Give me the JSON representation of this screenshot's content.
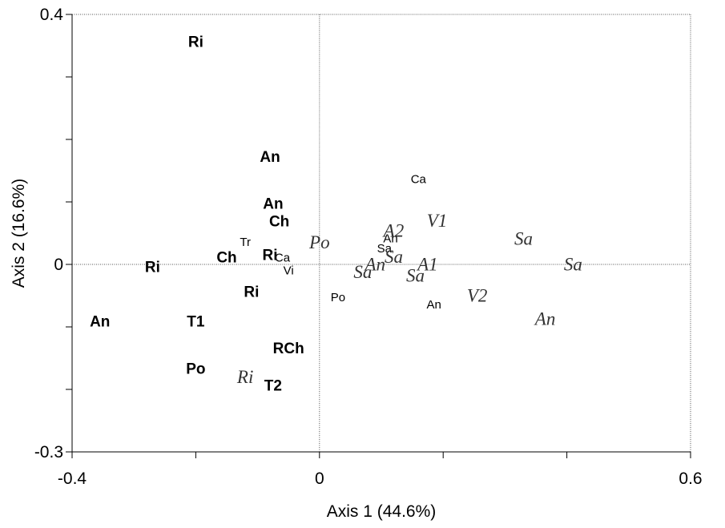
{
  "chart_data": {
    "type": "scatter",
    "title": "",
    "xlabel": "Axis 1 (44.6%)",
    "ylabel": "Axis 2 (16.6%)",
    "xlim": [
      -0.4,
      0.6
    ],
    "ylim": [
      -0.3,
      0.4
    ],
    "x_ticks": [
      -0.4,
      -0.2,
      0,
      0.2,
      0.4,
      0.6
    ],
    "x_tick_labels": [
      "-0.4",
      "",
      "0",
      "",
      "",
      "0.6"
    ],
    "y_ticks": [
      -0.3,
      -0.2,
      -0.1,
      0,
      0.1,
      0.2,
      0.3,
      0.4
    ],
    "y_tick_labels": [
      "-0.3",
      "",
      "",
      "0",
      "",
      "",
      "",
      "0.4"
    ],
    "zero_lines": true,
    "grid": false,
    "legend": "none",
    "styles": {
      "bold": {
        "color": "#000000"
      },
      "small": {
        "color": "#000000"
      },
      "italic": {
        "color": "#333333"
      }
    },
    "points": [
      {
        "label": "Ri",
        "x": -0.2,
        "y": 0.355,
        "style": "bold"
      },
      {
        "label": "An",
        "x": -0.08,
        "y": 0.171,
        "style": "bold"
      },
      {
        "label": "An",
        "x": -0.075,
        "y": 0.096,
        "style": "bold"
      },
      {
        "label": "Ch",
        "x": -0.065,
        "y": 0.068,
        "style": "bold"
      },
      {
        "label": "Ch",
        "x": -0.15,
        "y": 0.01,
        "style": "bold"
      },
      {
        "label": "Ri",
        "x": -0.08,
        "y": 0.014,
        "style": "bold"
      },
      {
        "label": "Ri",
        "x": -0.27,
        "y": -0.005,
        "style": "bold"
      },
      {
        "label": "Ri",
        "x": -0.11,
        "y": -0.045,
        "style": "bold"
      },
      {
        "label": "An",
        "x": -0.355,
        "y": -0.092,
        "style": "bold"
      },
      {
        "label": "T1",
        "x": -0.2,
        "y": -0.092,
        "style": "bold"
      },
      {
        "label": "RCh",
        "x": -0.05,
        "y": -0.135,
        "style": "bold"
      },
      {
        "label": "Po",
        "x": -0.2,
        "y": -0.168,
        "style": "bold"
      },
      {
        "label": "T2",
        "x": -0.075,
        "y": -0.195,
        "style": "bold"
      },
      {
        "label": "Ca",
        "x": 0.16,
        "y": 0.136,
        "style": "small"
      },
      {
        "label": "Tr",
        "x": -0.12,
        "y": 0.035,
        "style": "small"
      },
      {
        "label": "An",
        "x": 0.115,
        "y": 0.041,
        "style": "small"
      },
      {
        "label": "Sa",
        "x": 0.105,
        "y": 0.025,
        "style": "small"
      },
      {
        "label": "Ca",
        "x": -0.06,
        "y": 0.01,
        "style": "small"
      },
      {
        "label": "Vi",
        "x": -0.05,
        "y": -0.01,
        "style": "small"
      },
      {
        "label": "Po",
        "x": 0.03,
        "y": -0.053,
        "style": "small"
      },
      {
        "label": "An",
        "x": 0.185,
        "y": -0.065,
        "style": "small"
      },
      {
        "label": "V1",
        "x": 0.19,
        "y": 0.07,
        "style": "italic"
      },
      {
        "label": "A2",
        "x": 0.12,
        "y": 0.054,
        "style": "italic"
      },
      {
        "label": "Po",
        "x": 0.0,
        "y": 0.035,
        "style": "italic"
      },
      {
        "label": "Sa",
        "x": 0.33,
        "y": 0.041,
        "style": "italic"
      },
      {
        "label": "Sa",
        "x": 0.12,
        "y": 0.012,
        "style": "italic"
      },
      {
        "label": "An",
        "x": 0.09,
        "y": 0.0,
        "style": "italic"
      },
      {
        "label": "A1",
        "x": 0.175,
        "y": 0.0,
        "style": "italic"
      },
      {
        "label": "Sa",
        "x": 0.41,
        "y": 0.0,
        "style": "italic"
      },
      {
        "label": "Sa",
        "x": 0.07,
        "y": -0.012,
        "style": "italic"
      },
      {
        "label": "Sa",
        "x": 0.155,
        "y": -0.018,
        "style": "italic"
      },
      {
        "label": "V2",
        "x": 0.255,
        "y": -0.05,
        "style": "italic"
      },
      {
        "label": "An",
        "x": 0.365,
        "y": -0.087,
        "style": "italic"
      },
      {
        "label": "Ri",
        "x": -0.12,
        "y": -0.18,
        "style": "italic"
      }
    ]
  }
}
